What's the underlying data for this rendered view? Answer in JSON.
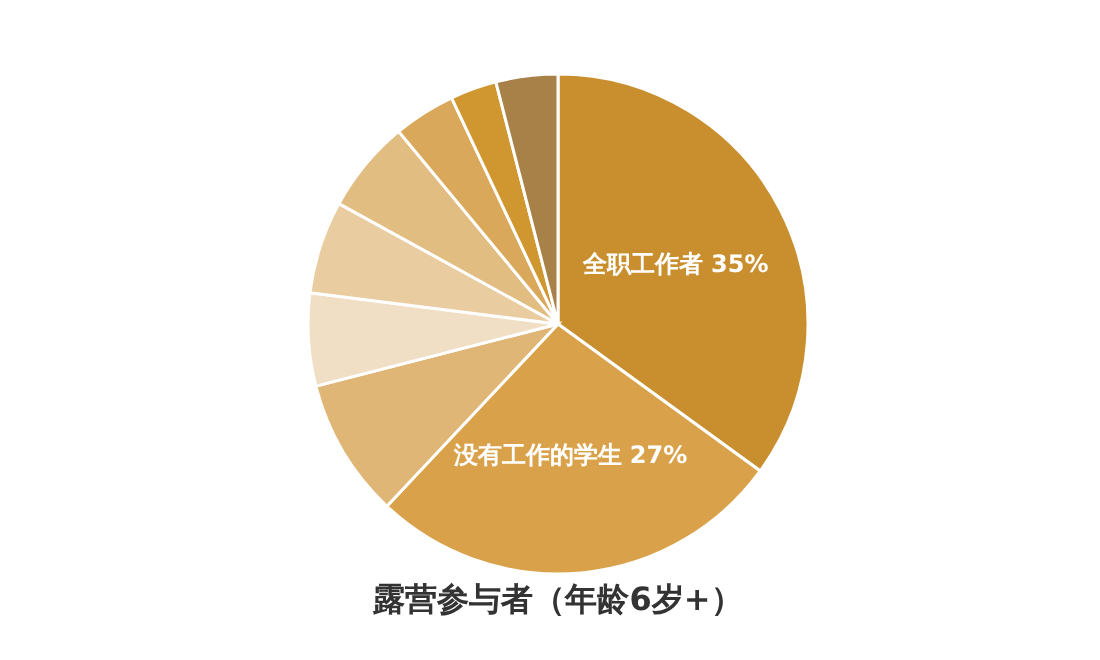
{
  "chart_data": {
    "type": "pie",
    "title": "露营参与者（年龄6岁+）",
    "categories": [
      "全职工作者",
      "没有工作的学生",
      null,
      null,
      null,
      null,
      null,
      null,
      null
    ],
    "values": [
      35,
      27,
      9,
      6,
      6,
      6,
      4,
      3,
      4
    ],
    "value_labels": [
      "35%",
      "27%",
      null,
      null,
      null,
      null,
      null,
      null,
      null
    ],
    "colors": [
      "#c98f2e",
      "#d9a24a",
      "#e0b677",
      "#f0dfc4",
      "#e9cc9f",
      "#e2bd82",
      "#d9a85b",
      "#d0962f",
      "#a88148"
    ]
  }
}
